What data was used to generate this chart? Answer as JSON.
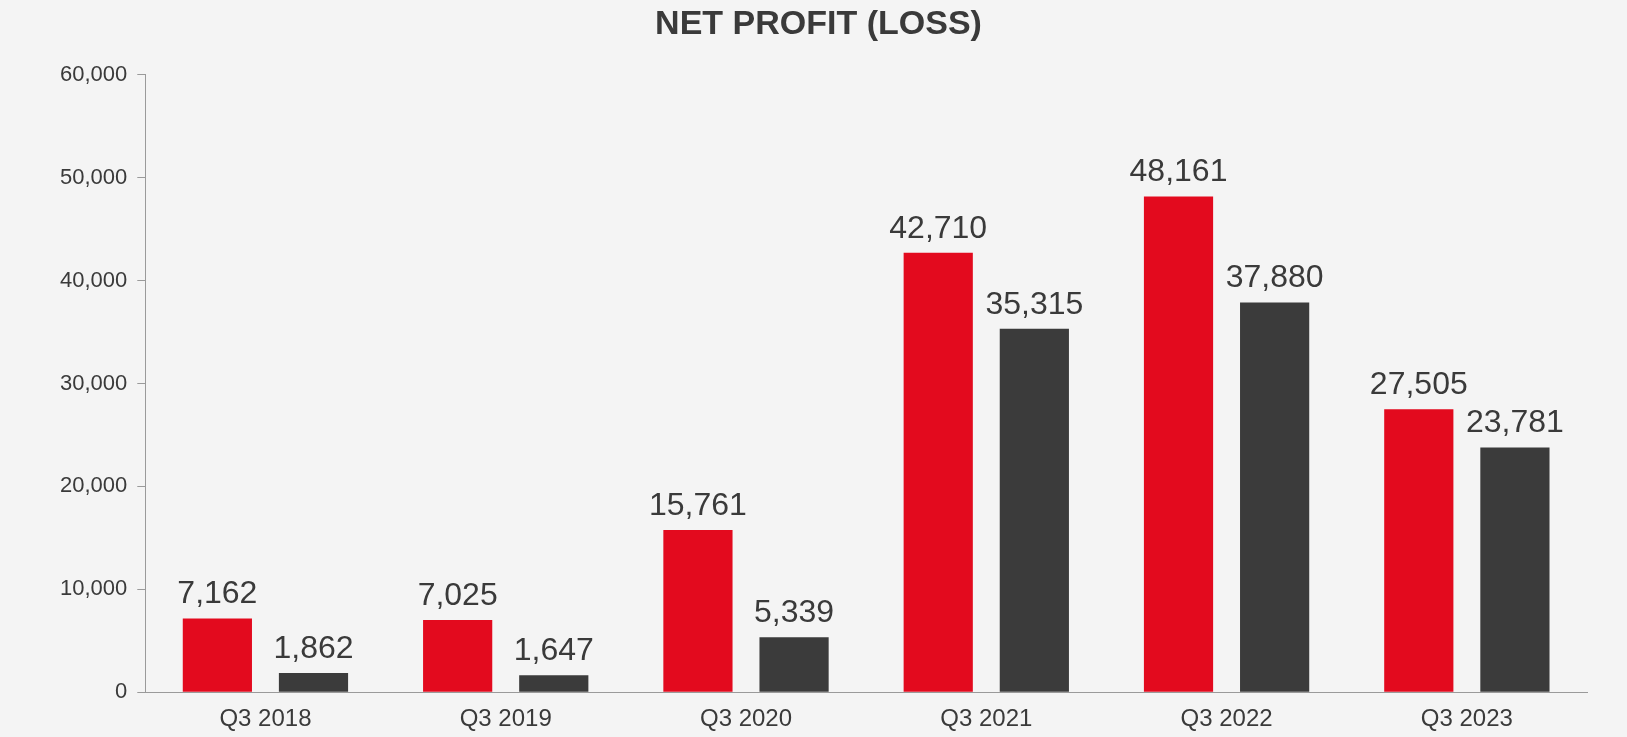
{
  "chart_data": {
    "type": "bar",
    "title": "NET PROFIT (LOSS)",
    "categories": [
      "Q3 2018",
      "Q3 2019",
      "Q3 2020",
      "Q3 2021",
      "Q3 2022",
      "Q3 2023"
    ],
    "series": [
      {
        "color": "#e30a1e",
        "values": [
          7162,
          7025,
          15761,
          42710,
          48161,
          27505
        ],
        "value_labels": [
          "7,162",
          "7,025",
          "15,761",
          "42,710",
          "48,161",
          "27,505"
        ]
      },
      {
        "color": "#3b3b3b",
        "values": [
          1862,
          1647,
          5339,
          35315,
          37880,
          23781
        ],
        "value_labels": [
          "1,862",
          "1,647",
          "5,339",
          "35,315",
          "37,880",
          "23,781"
        ]
      }
    ],
    "ylim": [
      0,
      60000
    ],
    "yticks": [
      0,
      {
        "value": 10000,
        "label": "10,000"
      },
      {
        "value": 20000,
        "label": "20,000"
      },
      {
        "value": 30000,
        "label": "30,000"
      },
      {
        "value": 40000,
        "label": "40,000"
      },
      {
        "value": 50000,
        "label": "50,000"
      },
      {
        "value": 60000,
        "label": "60,000"
      }
    ],
    "grid": false,
    "legend": false
  }
}
